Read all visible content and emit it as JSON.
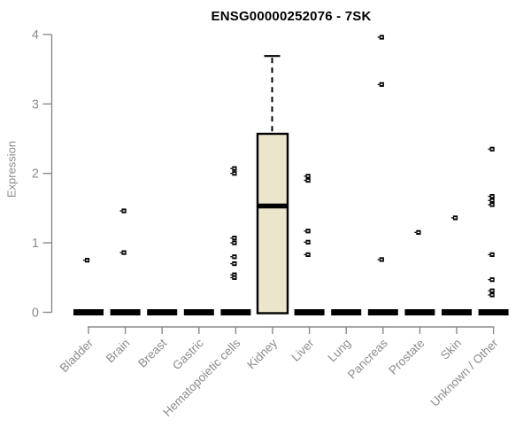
{
  "chart_data": {
    "type": "box",
    "title": "ENSG00000252076 - 7SK",
    "ylabel": "Expression",
    "xlabel": "",
    "ylim": [
      0,
      4
    ],
    "yticks": [
      0,
      1,
      2,
      3,
      4
    ],
    "grid": false,
    "legend": null,
    "outlier_marker": "small-black-square-plus",
    "categories": [
      "Bladder",
      "Brain",
      "Breast",
      "Gastric",
      "Hematopoietic cells",
      "Kidney",
      "Liver",
      "Lung",
      "Pancreas",
      "Prostate",
      "Skin",
      "Unknown / Other"
    ],
    "boxes": [
      {
        "category": "Bladder",
        "q1": 0,
        "median": 0,
        "q3": 0,
        "whisker_low": 0,
        "whisker_high": 0,
        "outliers": [
          0.75
        ]
      },
      {
        "category": "Brain",
        "q1": 0,
        "median": 0,
        "q3": 0,
        "whisker_low": 0,
        "whisker_high": 0,
        "outliers": [
          1.46,
          0.86
        ]
      },
      {
        "category": "Breast",
        "q1": 0,
        "median": 0,
        "q3": 0,
        "whisker_low": 0,
        "whisker_high": 0,
        "outliers": []
      },
      {
        "category": "Gastric",
        "q1": 0,
        "median": 0,
        "q3": 0,
        "whisker_low": 0,
        "whisker_high": 0,
        "outliers": []
      },
      {
        "category": "Hematopoietic cells",
        "q1": 0,
        "median": 0,
        "q3": 0,
        "whisker_low": 0,
        "whisker_high": 0,
        "outliers": [
          2.07,
          2.0,
          1.07,
          1.0,
          0.8,
          0.7,
          0.54,
          0.5
        ]
      },
      {
        "category": "Kidney",
        "q1": 0,
        "median": 1.53,
        "q3": 2.57,
        "whisker_low": 0,
        "whisker_high": 3.69,
        "outliers": []
      },
      {
        "category": "Liver",
        "q1": 0,
        "median": 0,
        "q3": 0,
        "whisker_low": 0,
        "whisker_high": 0,
        "outliers": [
          1.96,
          1.9,
          1.17,
          1.01,
          0.83
        ]
      },
      {
        "category": "Lung",
        "q1": 0,
        "median": 0,
        "q3": 0,
        "whisker_low": 0,
        "whisker_high": 0,
        "outliers": []
      },
      {
        "category": "Pancreas",
        "q1": 0,
        "median": 0,
        "q3": 0,
        "whisker_low": 0,
        "whisker_high": 0,
        "outliers": [
          3.96,
          3.28,
          0.76
        ]
      },
      {
        "category": "Prostate",
        "q1": 0,
        "median": 0,
        "q3": 0,
        "whisker_low": 0,
        "whisker_high": 0,
        "outliers": [
          1.15
        ]
      },
      {
        "category": "Skin",
        "q1": 0,
        "median": 0,
        "q3": 0,
        "whisker_low": 0,
        "whisker_high": 0,
        "outliers": [
          1.36
        ]
      },
      {
        "category": "Unknown / Other",
        "q1": 0,
        "median": 0,
        "q3": 0,
        "whisker_low": 0,
        "whisker_high": 0,
        "outliers": [
          2.35,
          1.67,
          1.61,
          1.55,
          0.83,
          0.47,
          0.31,
          0.25
        ]
      }
    ],
    "colors": {
      "box_fill": "#EBE6CB",
      "box_border": "#000000",
      "median": "#000000",
      "outlier": "#000000",
      "axis": "#8A8A8A",
      "axis_text": "#8C8C8C",
      "title_text": "#000000",
      "background": "#FFFFFF"
    }
  }
}
